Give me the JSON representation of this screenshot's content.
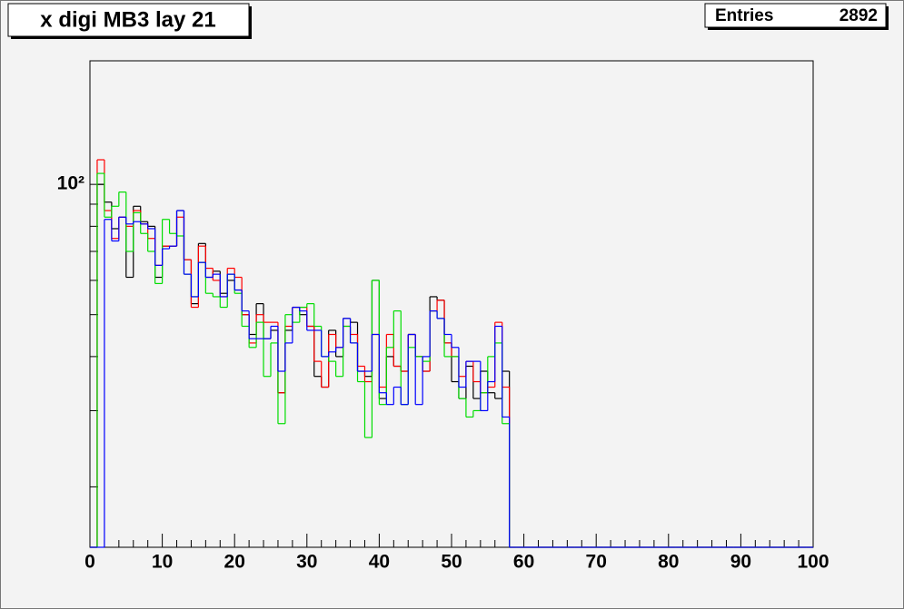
{
  "chart_data": {
    "type": "histogram",
    "title": "x digi MB3 lay 21",
    "stats": {
      "label": "Entries",
      "value": 2892
    },
    "bins": [
      0,
      1,
      2,
      3,
      4,
      5,
      6,
      7,
      8,
      9,
      10,
      11,
      12,
      13,
      14,
      15,
      16,
      17,
      18,
      19,
      20,
      21,
      22,
      23,
      24,
      25,
      26,
      27,
      28,
      29,
      30,
      31,
      32,
      33,
      34,
      35,
      36,
      37,
      38,
      39,
      40,
      41,
      42,
      43,
      44,
      45,
      46,
      47,
      48,
      49,
      50,
      51,
      52,
      53,
      54,
      55,
      56,
      57,
      58,
      59,
      60,
      61,
      62,
      63,
      64,
      65,
      66,
      67,
      68,
      69,
      70,
      71,
      72,
      73,
      74,
      75,
      76,
      77,
      78,
      79,
      80,
      81,
      82,
      83,
      84,
      85,
      86,
      87,
      88,
      89,
      90,
      91,
      92,
      93,
      94,
      95,
      96,
      97,
      98,
      99,
      100
    ],
    "series": [
      {
        "color": "#000000",
        "values": [
          0,
          100,
          91,
          79,
          84,
          61,
          89,
          82,
          80,
          61,
          72,
          72,
          87,
          67,
          53,
          73,
          61,
          63,
          56,
          60,
          57,
          50,
          45,
          53,
          44,
          46,
          33,
          46,
          52,
          50,
          47,
          36,
          34,
          46,
          40,
          49,
          48,
          37,
          36,
          60,
          32,
          40,
          38,
          37,
          45,
          40,
          37,
          55,
          54,
          43,
          35,
          32,
          38,
          32,
          37,
          33,
          32,
          37,
          0,
          0,
          0,
          0,
          0,
          0,
          0,
          0,
          0,
          0,
          0,
          0,
          0,
          0,
          0,
          0,
          0,
          0,
          0,
          0,
          0,
          0,
          0,
          0,
          0,
          0,
          0,
          0,
          0,
          0,
          0,
          0,
          0,
          0,
          0,
          0,
          0,
          0,
          0,
          0,
          0,
          0
        ]
      },
      {
        "color": "#ff0000",
        "values": [
          0,
          114,
          87,
          75,
          84,
          80,
          87,
          81,
          75,
          65,
          72,
          72,
          84,
          67,
          52,
          72,
          64,
          60,
          55,
          64,
          61,
          50,
          43,
          50,
          48,
          48,
          33,
          47,
          52,
          52,
          47,
          39,
          34,
          45,
          42,
          47,
          45,
          38,
          35,
          45,
          34,
          45,
          38,
          37,
          45,
          40,
          37,
          51,
          54,
          43,
          40,
          36,
          39,
          35,
          33,
          34,
          48,
          34,
          0,
          0,
          0,
          0,
          0,
          0,
          0,
          0,
          0,
          0,
          0,
          0,
          0,
          0,
          0,
          0,
          0,
          0,
          0,
          0,
          0,
          0,
          0,
          0,
          0,
          0,
          0,
          0,
          0,
          0,
          0,
          0,
          0,
          0,
          0,
          0,
          0,
          0,
          0,
          0,
          0,
          0
        ]
      },
      {
        "color": "#00dd00",
        "values": [
          0,
          106,
          84,
          89,
          96,
          70,
          86,
          77,
          70,
          59,
          83,
          77,
          76,
          62,
          55,
          66,
          56,
          55,
          52,
          62,
          56,
          47,
          42,
          48,
          36,
          43,
          28,
          50,
          48,
          52,
          53,
          47,
          40,
          39,
          36,
          47,
          43,
          35,
          26,
          60,
          31,
          42,
          51,
          31,
          42,
          40,
          39,
          51,
          49,
          40,
          40,
          32,
          29,
          30,
          33,
          40,
          43,
          28,
          0,
          0,
          0,
          0,
          0,
          0,
          0,
          0,
          0,
          0,
          0,
          0,
          0,
          0,
          0,
          0,
          0,
          0,
          0,
          0,
          0,
          0,
          0,
          0,
          0,
          0,
          0,
          0,
          0,
          0,
          0,
          0,
          0,
          0,
          0,
          0,
          0,
          0,
          0,
          0,
          0,
          0
        ]
      },
      {
        "color": "#0000ff",
        "values": [
          0,
          0,
          83,
          74,
          84,
          81,
          82,
          81,
          79,
          65,
          71,
          72,
          87,
          62,
          55,
          66,
          61,
          62,
          55,
          62,
          57,
          51,
          44,
          44,
          44,
          47,
          37,
          43,
          52,
          51,
          46,
          46,
          40,
          41,
          42,
          49,
          43,
          37,
          37,
          45,
          33,
          31,
          34,
          31,
          45,
          31,
          40,
          51,
          49,
          45,
          42,
          34,
          39,
          39,
          30,
          35,
          47,
          29,
          0,
          0,
          0,
          0,
          0,
          0,
          0,
          0,
          0,
          0,
          0,
          0,
          0,
          0,
          0,
          0,
          0,
          0,
          0,
          0,
          0,
          0,
          0,
          0,
          0,
          0,
          0,
          0,
          0,
          0,
          0,
          0,
          0,
          0,
          0,
          0,
          0,
          0,
          0,
          0,
          0,
          0
        ]
      }
    ],
    "xlim": [
      0,
      100
    ],
    "xticks": [
      0,
      10,
      20,
      30,
      40,
      50,
      60,
      70,
      80,
      90,
      100
    ],
    "xminorticks": [
      2,
      4,
      6,
      8,
      12,
      14,
      16,
      18,
      22,
      24,
      26,
      28,
      32,
      34,
      36,
      38,
      42,
      44,
      46,
      48,
      52,
      54,
      56,
      58,
      62,
      64,
      66,
      68,
      72,
      74,
      76,
      78,
      82,
      84,
      86,
      88,
      92,
      94,
      96,
      98
    ],
    "ylim": [
      14.5,
      193
    ],
    "log_y": true,
    "yticks": [
      {
        "value": 100,
        "label": "10²"
      }
    ],
    "yminorticks": [
      20,
      30,
      40,
      50,
      60,
      70,
      80,
      90
    ]
  }
}
